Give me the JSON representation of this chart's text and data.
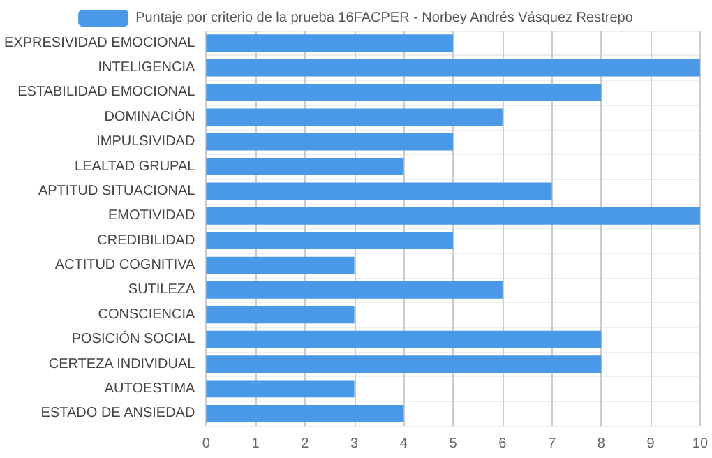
{
  "chart_data": {
    "type": "bar",
    "orientation": "horizontal",
    "categories": [
      "EXPRESIVIDAD EMOCIONAL",
      "INTELIGENCIA",
      "ESTABILIDAD EMOCIONAL",
      "DOMINACIÓN",
      "IMPULSIVIDAD",
      "LEALTAD GRUPAL",
      "APTITUD SITUACIONAL",
      "EMOTIVIDAD",
      "CREDIBILIDAD",
      "ACTITUD COGNITIVA",
      "SUTILEZA",
      "CONSCIENCIA",
      "POSICIÓN SOCIAL",
      "CERTEZA INDIVIDUAL",
      "AUTOESTIMA",
      "ESTADO DE ANSIEDAD"
    ],
    "series": [
      {
        "name": "Puntaje por criterio de la prueba 16FACPER - Norbey Andrés Vásquez Restrepo",
        "color": "#4a98e8",
        "values": [
          5,
          10,
          8,
          6,
          5,
          4,
          7,
          10,
          5,
          3,
          6,
          3,
          8,
          8,
          3,
          4
        ]
      }
    ],
    "xlim": [
      0,
      10
    ],
    "xticks": [
      0,
      1,
      2,
      3,
      4,
      5,
      6,
      7,
      8,
      9,
      10
    ],
    "grid": true,
    "legend": "top"
  }
}
